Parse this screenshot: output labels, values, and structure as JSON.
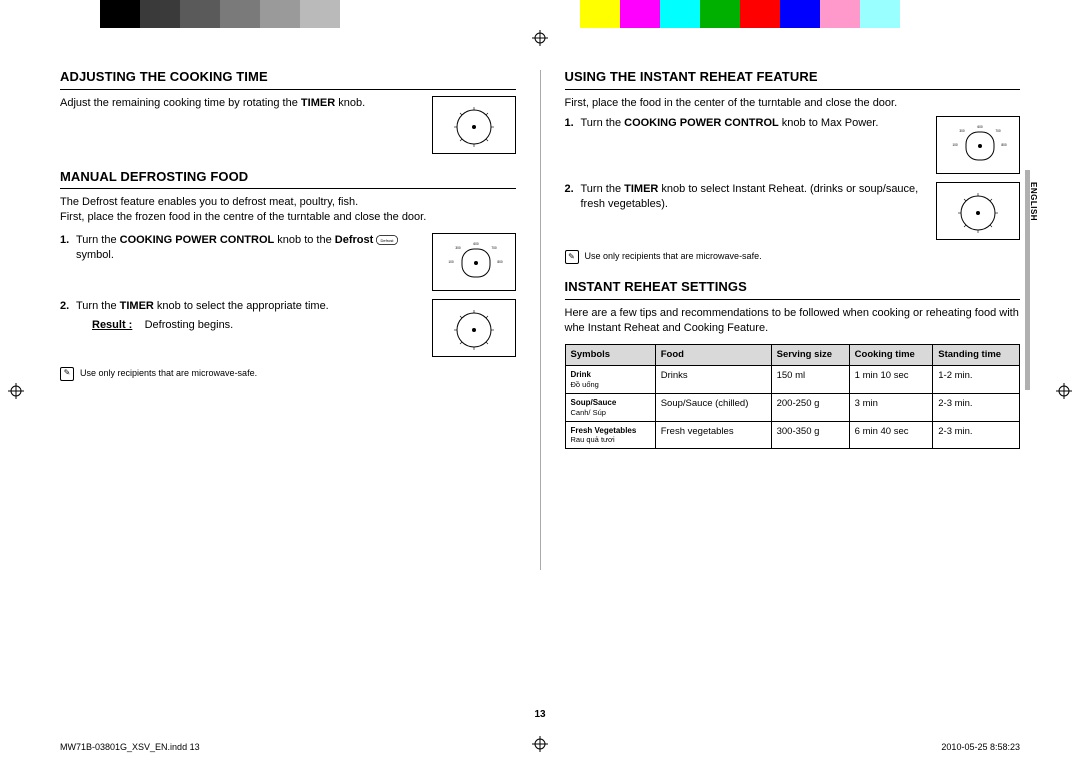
{
  "colorbar": [
    "#000000",
    "#3a3a3a",
    "#5a5a5a",
    "#7a7a7a",
    "#9a9a9a",
    "#bababa",
    "#ffffff",
    "#ffffff",
    "#ffffff",
    "#ffffff",
    "#ffffff",
    "#ffffff",
    "#ffff00",
    "#ff00ff",
    "#00ffff",
    "#00b000",
    "#ff0000",
    "#0000ff",
    "#ff99cc",
    "#99ffff",
    "#ffffff",
    "#ffffff"
  ],
  "lang_tab": "ENGLISH",
  "page_number": "13",
  "footer_left": "MW71B-03801G_XSV_EN.indd   13",
  "footer_right": "2010-05-25    8:58:23",
  "left": {
    "h1": "ADJUSTING THE COOKING TIME",
    "p1a": "Adjust the remaining cooking time by rotating the ",
    "p1b": "TIMER",
    "p1c": " knob.",
    "h2": "MANUAL DEFROSTING FOOD",
    "p2": "The Defrost feature enables you to defrost meat, poultry, fish.",
    "p3": "First, place the frozen food in the centre of the turntable and close the door.",
    "s1a": "Turn the ",
    "s1b": "COOKING POWER CONTROL",
    "s1c": " knob to the ",
    "s1d": "Defrost",
    "s1e": " symbol.",
    "s2a": "Turn the ",
    "s2b": "TIMER",
    "s2c": " knob to select the appropriate time.",
    "result_label": "Result :",
    "result_text": "Defrosting begins.",
    "note": "Use only recipients that are microwave-safe."
  },
  "right": {
    "h1": "USING THE INSTANT REHEAT FEATURE",
    "p1": "First, place the food in the center of the turntable and close the door.",
    "s1a": "Turn the ",
    "s1b": "COOKING POWER CONTROL",
    "s1c": " knob to Max Power.",
    "s2a": "Turn the ",
    "s2b": "TIMER",
    "s2c": " knob to select Instant Reheat. (drinks or soup/sauce, fresh vegetables).",
    "note": "Use only recipients that are microwave-safe.",
    "h2": "INSTANT REHEAT SETTINGS",
    "p2": "Here are a few tips and recommendations to be followed when cooking or reheating food with whe Instant Reheat and Cooking Feature.",
    "table": {
      "headers": [
        "Symbols",
        "Food",
        "Serving size",
        "Cooking time",
        "Standing time"
      ],
      "rows": [
        {
          "sym_b": "Drink",
          "sym_s": "Đồ uống",
          "food": "Drinks",
          "size": "150 ml",
          "cook": "1 min 10 sec",
          "stand": "1-2 min."
        },
        {
          "sym_b": "Soup/Sauce",
          "sym_s": "Canh/ Súp",
          "food": "Soup/Sauce (chilled)",
          "size": "200-250 g",
          "cook": "3 min",
          "stand": "2-3 min."
        },
        {
          "sym_b": "Fresh Vegetables",
          "sym_s": "Rau quả tươi",
          "food": "Fresh vegetables",
          "size": "300-350 g",
          "cook": "6 min 40 sec",
          "stand": "2-3 min."
        }
      ]
    }
  }
}
